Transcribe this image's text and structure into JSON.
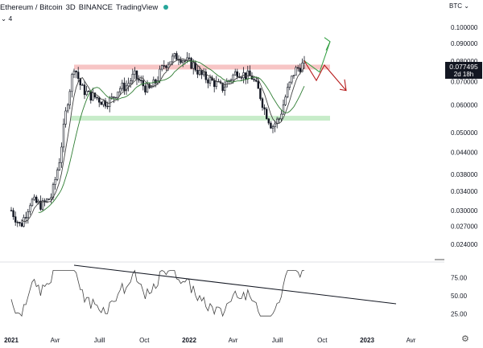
{
  "header": {
    "symbol": "Ethereum / Bitcoin",
    "interval": "3D",
    "exchange": "BINANCE",
    "source": "TradingView"
  },
  "indicator_toggle": "⌄ 4",
  "currency_select": "BTC ⌄",
  "last_price": {
    "value": "0.077495",
    "countdown": "2d 18h"
  },
  "colors": {
    "candle": "#131722",
    "resistance_band": "#f7c5c5",
    "support_band": "#c7ecc9",
    "ma_fast": "#444444",
    "ma_slow": "#2e7d32",
    "arrow_up": "#2e9e3e",
    "arrow_down": "#b71c1c",
    "price_label_bg": "#131722",
    "rsi_line": "#444444"
  },
  "price_axis": [
    "0.100000",
    "0.090000",
    "0.080000",
    "0.070000",
    "0.060000",
    "0.050000",
    "0.044000",
    "0.038000",
    "0.034000",
    "0.030000",
    "0.027000",
    "0.024000"
  ],
  "rsi_axis": [
    "75.00",
    "50.00",
    "25.00"
  ],
  "time_axis": [
    "2021",
    "Avr",
    "Juill",
    "Oct",
    "2022",
    "Avr",
    "Juill",
    "Oct",
    "2023",
    "Avr"
  ],
  "chart_data": {
    "type": "candlestick",
    "title": "Ethereum / Bitcoin",
    "scale": "log",
    "x_range": [
      "2021-01",
      "2023-04"
    ],
    "ylim": [
      0.022,
      0.105
    ],
    "resistance_level": 0.077,
    "support_level": 0.055,
    "close_path": [
      {
        "x": "2021-01-01",
        "y": 0.03
      },
      {
        "x": "2021-01-20",
        "y": 0.027
      },
      {
        "x": "2021-02-10",
        "y": 0.032
      },
      {
        "x": "2021-03-05",
        "y": 0.031
      },
      {
        "x": "2021-03-25",
        "y": 0.033
      },
      {
        "x": "2021-04-10",
        "y": 0.042
      },
      {
        "x": "2021-04-25",
        "y": 0.06
      },
      {
        "x": "2021-05-10",
        "y": 0.078
      },
      {
        "x": "2021-05-25",
        "y": 0.067
      },
      {
        "x": "2021-06-10",
        "y": 0.064
      },
      {
        "x": "2021-06-25",
        "y": 0.063
      },
      {
        "x": "2021-07-10",
        "y": 0.061
      },
      {
        "x": "2021-07-25",
        "y": 0.062
      },
      {
        "x": "2021-08-10",
        "y": 0.067
      },
      {
        "x": "2021-08-25",
        "y": 0.068
      },
      {
        "x": "2021-09-10",
        "y": 0.073
      },
      {
        "x": "2021-09-25",
        "y": 0.069
      },
      {
        "x": "2021-10-10",
        "y": 0.066
      },
      {
        "x": "2021-10-25",
        "y": 0.07
      },
      {
        "x": "2021-11-10",
        "y": 0.078
      },
      {
        "x": "2021-11-25",
        "y": 0.081
      },
      {
        "x": "2021-12-10",
        "y": 0.083
      },
      {
        "x": "2021-12-25",
        "y": 0.08
      },
      {
        "x": "2022-01-10",
        "y": 0.078
      },
      {
        "x": "2022-01-25",
        "y": 0.073
      },
      {
        "x": "2022-02-10",
        "y": 0.071
      },
      {
        "x": "2022-02-25",
        "y": 0.069
      },
      {
        "x": "2022-03-10",
        "y": 0.067
      },
      {
        "x": "2022-03-25",
        "y": 0.071
      },
      {
        "x": "2022-04-10",
        "y": 0.075
      },
      {
        "x": "2022-04-25",
        "y": 0.073
      },
      {
        "x": "2022-05-10",
        "y": 0.072
      },
      {
        "x": "2022-05-25",
        "y": 0.065
      },
      {
        "x": "2022-06-05",
        "y": 0.058
      },
      {
        "x": "2022-06-20",
        "y": 0.052
      },
      {
        "x": "2022-07-05",
        "y": 0.055
      },
      {
        "x": "2022-07-20",
        "y": 0.065
      },
      {
        "x": "2022-08-05",
        "y": 0.075
      },
      {
        "x": "2022-08-20",
        "y": 0.078
      },
      {
        "x": "2022-08-28",
        "y": 0.0775
      }
    ],
    "rsi": {
      "ylim": [
        10,
        90
      ],
      "levels": [
        25,
        50,
        75
      ]
    }
  }
}
